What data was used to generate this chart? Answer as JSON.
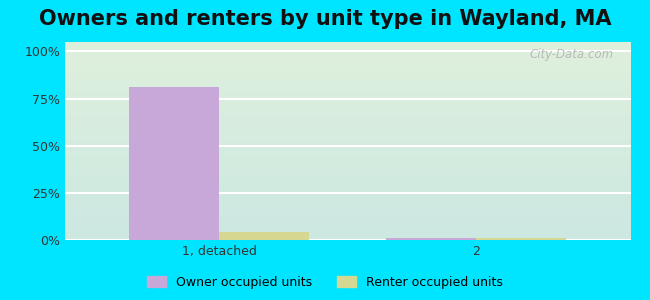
{
  "title": "Owners and renters by unit type in Wayland, MA",
  "title_fontsize": 15,
  "categories": [
    "1, detached",
    "2"
  ],
  "owner_values": [
    81,
    0.8
  ],
  "renter_values": [
    4.5,
    0.8
  ],
  "owner_color": "#c8a8d8",
  "renter_color": "#d4d890",
  "yticks": [
    0,
    25,
    50,
    75,
    100
  ],
  "ytick_labels": [
    "0%",
    "25%",
    "50%",
    "75%",
    "100%"
  ],
  "ylim": [
    0,
    105
  ],
  "bar_width": 0.35,
  "bg_outer": "#00e5ff",
  "bg_plot_top": "#dff0dc",
  "bg_plot_bottom": "#cce8e2",
  "grid_color": "#ffffff",
  "legend_owner": "Owner occupied units",
  "legend_renter": "Renter occupied units",
  "watermark": "City-Data.com",
  "x_positions": [
    0,
    1
  ],
  "xlim": [
    -0.6,
    1.6
  ]
}
